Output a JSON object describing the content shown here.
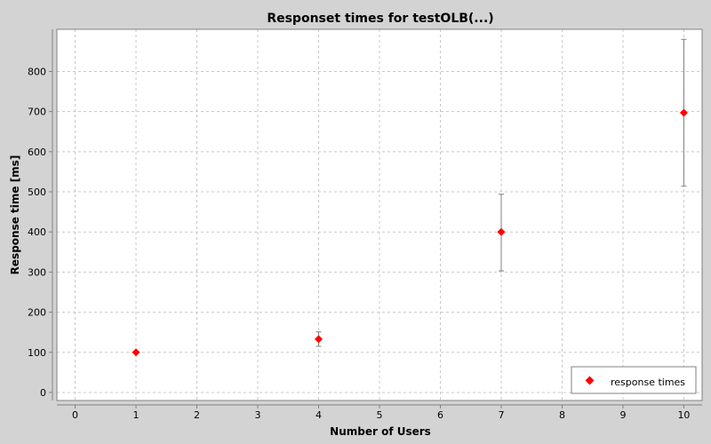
{
  "chart_data": {
    "type": "scatter",
    "title": "Responset times for testOLB(...)",
    "xlabel": "Number of Users",
    "ylabel": "Response time [ms]",
    "xlim": [
      -0.3,
      10.3
    ],
    "ylim": [
      -20,
      905
    ],
    "xticks": [
      0,
      1,
      2,
      3,
      4,
      5,
      6,
      7,
      8,
      9,
      10
    ],
    "yticks": [
      0,
      100,
      200,
      300,
      400,
      500,
      600,
      700,
      800
    ],
    "grid": true,
    "legend_position": "bottom-right",
    "series": [
      {
        "name": "response times",
        "color": "#ff0000",
        "marker": "diamond",
        "points": [
          {
            "x": 1,
            "y": 100,
            "err_low": 100,
            "err_high": 100
          },
          {
            "x": 4,
            "y": 133,
            "err_low": 115,
            "err_high": 151
          },
          {
            "x": 7,
            "y": 400,
            "err_low": 303,
            "err_high": 494
          },
          {
            "x": 10,
            "y": 697,
            "err_low": 514,
            "err_high": 880
          }
        ]
      }
    ]
  }
}
